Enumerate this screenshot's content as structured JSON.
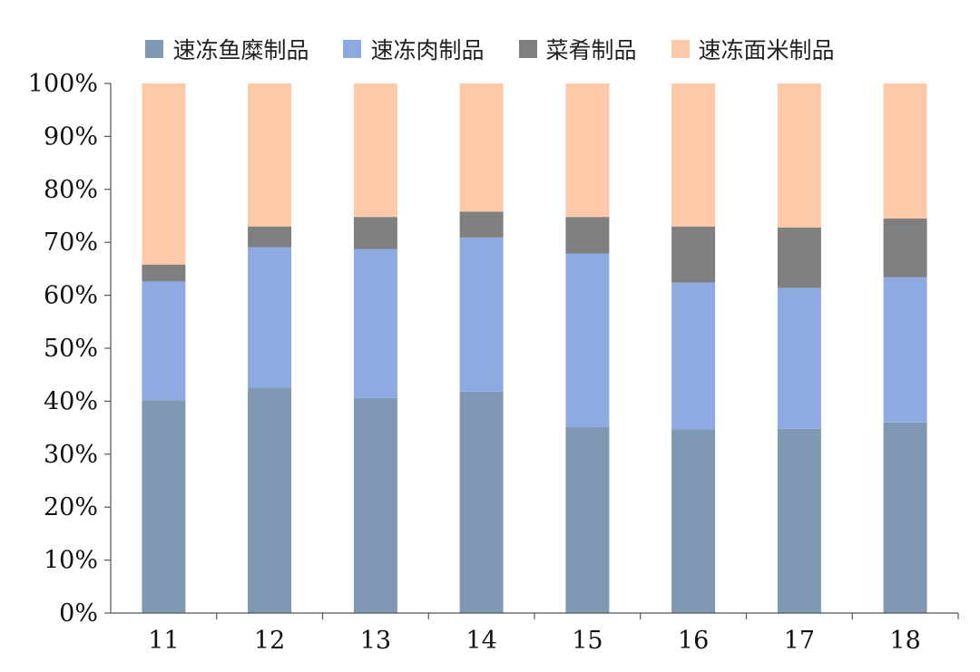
{
  "chart_data": {
    "type": "bar",
    "stacked": true,
    "categories": [
      "11",
      "12",
      "13",
      "14",
      "15",
      "16",
      "17",
      "18"
    ],
    "series": [
      {
        "name": "速冻鱼糜制品",
        "color": "#7f99b4",
        "values": [
          40.2,
          42.6,
          40.6,
          41.8,
          35.1,
          34.7,
          34.8,
          36.0
        ]
      },
      {
        "name": "速冻肉制品",
        "color": "#8eaae2",
        "values": [
          22.4,
          26.5,
          28.1,
          29.1,
          32.8,
          27.7,
          26.6,
          27.4
        ]
      },
      {
        "name": "菜肴制品",
        "color": "#7f7f7f",
        "values": [
          3.2,
          3.9,
          6.1,
          4.9,
          6.9,
          10.6,
          11.4,
          11.1
        ]
      },
      {
        "name": "速冻面米制品",
        "color": "#fdc9a8",
        "values": [
          34.2,
          27.0,
          25.2,
          24.2,
          25.2,
          27.0,
          27.2,
          25.5
        ]
      }
    ],
    "ylim": [
      0,
      100
    ],
    "yticks": [
      "0%",
      "10%",
      "20%",
      "30%",
      "40%",
      "50%",
      "60%",
      "70%",
      "80%",
      "90%",
      "100%"
    ],
    "title": "",
    "xlabel": "",
    "ylabel": "",
    "legend": "top",
    "grid": false
  }
}
